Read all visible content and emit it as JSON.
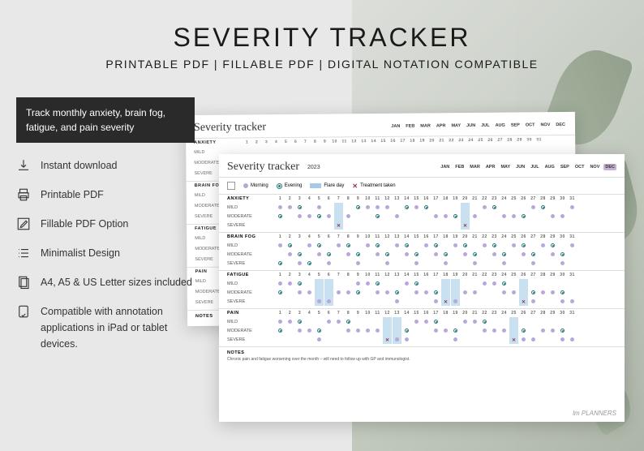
{
  "header": {
    "title": "SEVERITY TRACKER",
    "subtitle": "PRINTABLE PDF | FILLABLE PDF | DIGITAL NOTATION COMPATIBLE"
  },
  "promo": {
    "box_text": "Track monthly anxiety, brain fog, fatigue, and pain severity",
    "features": [
      {
        "icon": "download",
        "text": "Instant download"
      },
      {
        "icon": "print",
        "text": "Printable PDF"
      },
      {
        "icon": "edit",
        "text": "Fillable PDF Option"
      },
      {
        "icon": "list",
        "text": "Minimalist Design"
      },
      {
        "icon": "pages",
        "text": "A4, A5 & US Letter sizes included"
      },
      {
        "icon": "tablet",
        "text": "Compatible with annotation applications in iPad or tablet devices."
      }
    ]
  },
  "sheet": {
    "script_title": "Severity tracker",
    "year": "2023",
    "months": [
      "JAN",
      "FEB",
      "MAR",
      "APR",
      "MAY",
      "JUN",
      "JUL",
      "AUG",
      "SEP",
      "OCT",
      "NOV",
      "DEC"
    ],
    "selected_month": "DEC",
    "legend": {
      "morning": "Morning",
      "evening": "Evening",
      "flare": "Flare day",
      "treatment": "Treatment taken"
    },
    "days": [
      "1",
      "2",
      "3",
      "4",
      "5",
      "6",
      "7",
      "8",
      "9",
      "10",
      "11",
      "12",
      "13",
      "14",
      "15",
      "16",
      "17",
      "18",
      "19",
      "20",
      "21",
      "22",
      "23",
      "24",
      "25",
      "26",
      "27",
      "28",
      "29",
      "30",
      "31"
    ],
    "sections": [
      {
        "name": "ANXIETY",
        "levels": [
          "MILD",
          "MODERATE",
          "SEVERE"
        ]
      },
      {
        "name": "BRAIN FOG",
        "levels": [
          "MILD",
          "MODERATE",
          "SEVERE"
        ]
      },
      {
        "name": "FATIGUE",
        "levels": [
          "MILD",
          "MODERATE",
          "SEVERE"
        ]
      },
      {
        "name": "PAIN",
        "levels": [
          "MILD",
          "MODERATE",
          "SEVERE"
        ]
      }
    ],
    "notes_label": "NOTES",
    "notes_text": "Chronic pain and fatigue worsening over the month – will need to follow up with GP and immunologist.",
    "brand": "lm PLANNERS"
  },
  "colors": {
    "morning": "#b8a8d8",
    "evening": "#2a7a7a",
    "flare": "#a8c8e8",
    "treatment": "#8a3a5a",
    "selected_month": "#c8b0d0"
  },
  "chart_data": {
    "note": "Dot positions represent severity level (row) occupied per day per section; 'm'=morning purple dot, 'e'=evening teal ring, 'x'=treatment cross, flare days highlighted blue",
    "anxiety": {
      "flare_days": [
        7,
        20
      ],
      "points": {
        "mild": {
          "m": [
            1,
            2,
            5,
            10,
            11,
            12,
            15,
            22,
            27,
            31
          ],
          "e": [
            3,
            9,
            14,
            16,
            23,
            28
          ]
        },
        "moderate": {
          "m": [
            3,
            4,
            6,
            8,
            13,
            17,
            18,
            21,
            24,
            25,
            29,
            30
          ],
          "e": [
            1,
            5,
            11,
            19,
            26
          ]
        },
        "severe": {
          "m": [
            7,
            20
          ],
          "e": [
            7
          ],
          "x": [
            7,
            20
          ]
        }
      }
    },
    "brain_fog": {
      "flare_days": [],
      "points": {
        "mild": {
          "m": [
            1,
            4,
            7,
            10,
            13,
            16,
            19,
            22,
            25,
            28,
            31
          ],
          "e": [
            2,
            5,
            8,
            11,
            14,
            17,
            20,
            23,
            26,
            29
          ]
        },
        "moderate": {
          "m": [
            2,
            5,
            8,
            11,
            14,
            17,
            20,
            23,
            26,
            29
          ],
          "e": [
            3,
            6,
            9,
            12,
            15,
            18,
            21,
            24,
            27,
            30
          ]
        },
        "severe": {
          "m": [
            3,
            6,
            9,
            12,
            15,
            18,
            21,
            24,
            27,
            30
          ],
          "e": [
            1,
            4
          ]
        }
      }
    },
    "fatigue": {
      "flare_days": [
        5,
        6,
        18,
        19,
        26
      ],
      "points": {
        "mild": {
          "m": [
            1,
            2,
            9,
            10,
            14,
            22,
            23
          ],
          "e": [
            3,
            11,
            15,
            24
          ]
        },
        "moderate": {
          "m": [
            3,
            4,
            7,
            8,
            11,
            12,
            15,
            16,
            20,
            21,
            24,
            25,
            28,
            29
          ],
          "e": [
            1,
            9,
            13,
            17,
            27,
            30
          ]
        },
        "severe": {
          "m": [
            5,
            6,
            13,
            17,
            18,
            19,
            26,
            27,
            30,
            31
          ],
          "e": [
            5,
            18,
            26
          ],
          "x": [
            18,
            26
          ]
        }
      }
    },
    "pain": {
      "flare_days": [
        12,
        13,
        25
      ],
      "points": {
        "mild": {
          "m": [
            1,
            2,
            6,
            7,
            15,
            16,
            20,
            21
          ],
          "e": [
            3,
            8,
            17,
            22
          ]
        },
        "moderate": {
          "m": [
            3,
            4,
            8,
            9,
            10,
            11,
            17,
            18,
            22,
            23,
            24,
            28,
            29
          ],
          "e": [
            1,
            5,
            14,
            19,
            26,
            30
          ]
        },
        "severe": {
          "m": [
            5,
            12,
            13,
            14,
            19,
            25,
            26,
            27,
            30,
            31
          ],
          "e": [
            12,
            25
          ],
          "x": [
            12,
            25
          ]
        }
      }
    }
  }
}
